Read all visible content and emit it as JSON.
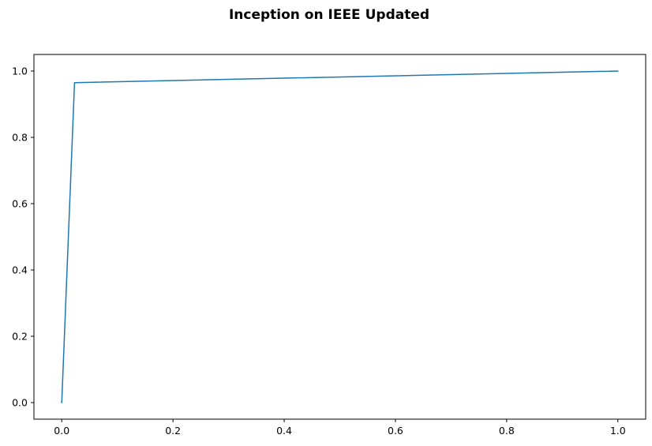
{
  "chart_data": {
    "type": "line",
    "title": "Inception on IEEE Updated",
    "xlabel": "",
    "ylabel": "",
    "xlim": [
      -0.05,
      1.05
    ],
    "ylim": [
      -0.05,
      1.05
    ],
    "xticks": [
      0.0,
      0.2,
      0.4,
      0.6,
      0.8,
      1.0
    ],
    "xtick_labels": [
      "0.0",
      "0.2",
      "0.4",
      "0.6",
      "0.8",
      "1.0"
    ],
    "yticks": [
      0.0,
      0.2,
      0.4,
      0.6,
      0.8,
      1.0
    ],
    "ytick_labels": [
      "0.0",
      "0.2",
      "0.4",
      "0.6",
      "0.8",
      "1.0"
    ],
    "grid": false,
    "legend": "none",
    "series": [
      {
        "color": "#1f77b4",
        "x": [
          0.0,
          0.023,
          1.0
        ],
        "y": [
          0.0,
          0.965,
          1.0
        ]
      }
    ]
  }
}
